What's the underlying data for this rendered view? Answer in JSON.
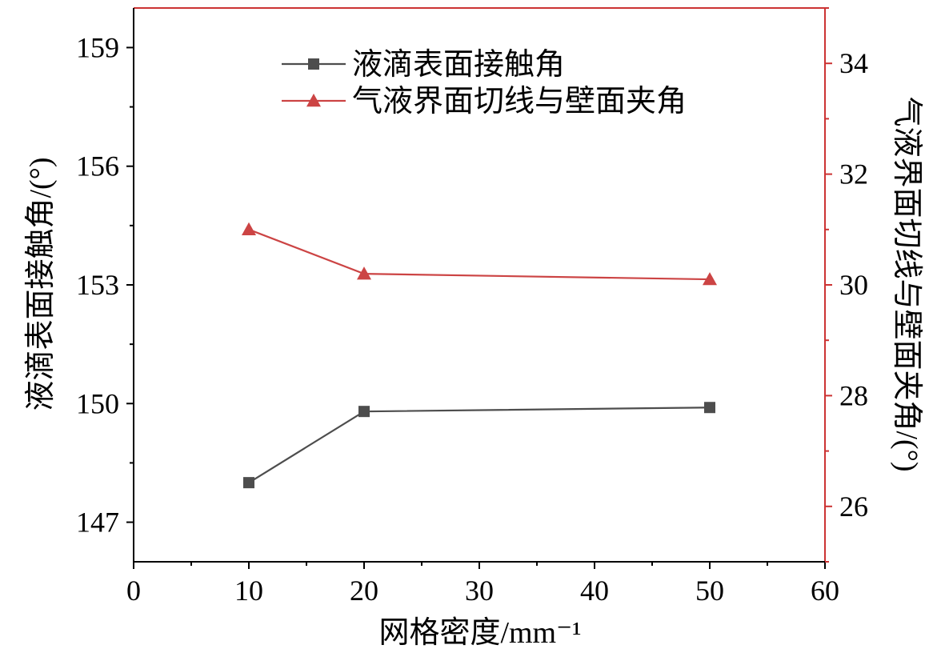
{
  "chart_data": {
    "type": "line",
    "xlabel": "网格密度/mm⁻¹",
    "ylabel_left": "液滴表面接触角/(°)",
    "ylabel_right": "气液界面切线与壁面夹角/(°)",
    "xlim": [
      0,
      60
    ],
    "ylim_left": [
      146,
      160
    ],
    "ylim_right": [
      25,
      35
    ],
    "x_ticks": [
      "0",
      "10",
      "20",
      "30",
      "40",
      "50",
      "60"
    ],
    "y_left_ticks": [
      "147",
      "150",
      "153",
      "156",
      "159"
    ],
    "y_right_ticks": [
      "26",
      "28",
      "30",
      "32",
      "34"
    ],
    "grid": false,
    "legend_position": "top-center",
    "series": [
      {
        "name": "液滴表面接触角",
        "axis": "left",
        "marker": "square",
        "color": "#4d4d4d",
        "x": [
          10,
          20,
          50
        ],
        "y": [
          148.0,
          149.8,
          149.9
        ]
      },
      {
        "name": "气液界面切线与壁面夹角",
        "axis": "right",
        "marker": "triangle",
        "color": "#cc4444",
        "x": [
          10,
          20,
          50
        ],
        "y": [
          31.0,
          30.2,
          30.1
        ]
      }
    ],
    "axis_colors": {
      "left": "#000000",
      "right": "#cc3333",
      "bottom": "#000000",
      "top": "#cc3333"
    }
  }
}
